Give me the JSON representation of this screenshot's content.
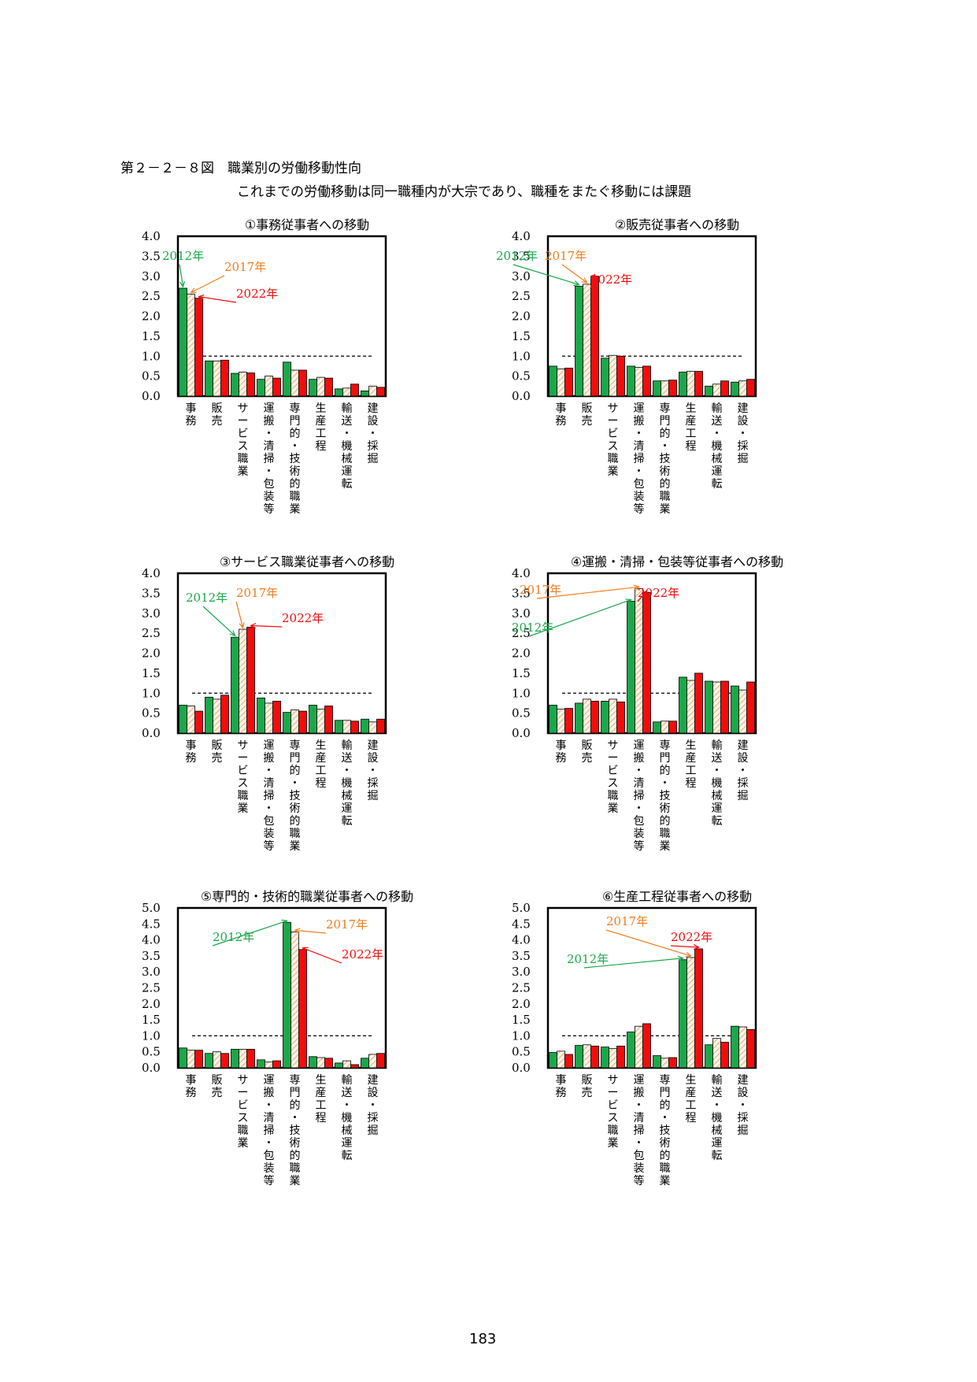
{
  "figure": {
    "title": "第２－２－８図　職業別の労働移動性向",
    "subtitle": "これまでの労働移動は同一職種内が大宗であり、職種をまたぐ移動には課題"
  },
  "page_number": "183",
  "colors": {
    "y2012": "#1aa84a",
    "y2017_stripe": "#f0a878",
    "y2017_bg": "#fff6ea",
    "y2022": "#f20c0c",
    "label_2012": "#1aa84a",
    "label_2017": "#f07d1e",
    "label_2022": "#f20c0c"
  },
  "chart_data": [
    {
      "type": "bar",
      "title": "①事務従事者への移動",
      "categories": [
        "事務",
        "販売",
        "サービス職業",
        "運搬・清掃・包装等",
        "専門的・技術的職業",
        "生産工程",
        "輸送・機械運転",
        "建設・採掘"
      ],
      "series": [
        {
          "name": "2012年",
          "values": [
            2.7,
            0.88,
            0.57,
            0.42,
            0.85,
            0.42,
            0.18,
            0.13
          ]
        },
        {
          "name": "2017年",
          "values": [
            2.55,
            0.88,
            0.6,
            0.5,
            0.65,
            0.47,
            0.2,
            0.25
          ]
        },
        {
          "name": "2022年",
          "values": [
            2.45,
            0.9,
            0.58,
            0.45,
            0.65,
            0.45,
            0.3,
            0.22
          ]
        }
      ],
      "ylim": [
        0,
        4
      ],
      "yticks": [
        "0.0",
        "0.5",
        "1.0",
        "1.5",
        "2.0",
        "2.5",
        "3.0",
        "3.5",
        "4.0"
      ],
      "reference_line": 1.0
    },
    {
      "type": "bar",
      "title": "②販売従事者への移動",
      "categories": [
        "事務",
        "販売",
        "サービス職業",
        "運搬・清掃・包装等",
        "専門的・技術的職業",
        "生産工程",
        "輸送・機械運転",
        "建設・採掘"
      ],
      "series": [
        {
          "name": "2012年",
          "values": [
            0.75,
            2.75,
            0.95,
            0.75,
            0.38,
            0.6,
            0.25,
            0.35
          ]
        },
        {
          "name": "2017年",
          "values": [
            0.68,
            2.8,
            1.02,
            0.72,
            0.38,
            0.62,
            0.3,
            0.38
          ]
        },
        {
          "name": "2022年",
          "values": [
            0.7,
            3.0,
            1.0,
            0.75,
            0.4,
            0.62,
            0.38,
            0.42
          ]
        }
      ],
      "ylim": [
        0,
        4
      ],
      "yticks": [
        "0.0",
        "0.5",
        "1.0",
        "1.5",
        "2.0",
        "2.5",
        "3.0",
        "3.5",
        "4.0"
      ],
      "reference_line": 1.0
    },
    {
      "type": "bar",
      "title": "③サービス職業従事者への移動",
      "categories": [
        "事務",
        "販売",
        "サービス職業",
        "運搬・清掃・包装等",
        "専門的・技術的職業",
        "生産工程",
        "輸送・機械運転",
        "建設・採掘"
      ],
      "series": [
        {
          "name": "2012年",
          "values": [
            0.7,
            0.9,
            2.4,
            0.88,
            0.52,
            0.7,
            0.32,
            0.35
          ]
        },
        {
          "name": "2017年",
          "values": [
            0.68,
            0.85,
            2.6,
            0.75,
            0.58,
            0.6,
            0.32,
            0.28
          ]
        },
        {
          "name": "2022年",
          "values": [
            0.55,
            0.95,
            2.65,
            0.8,
            0.55,
            0.68,
            0.3,
            0.35
          ]
        }
      ],
      "ylim": [
        0,
        4
      ],
      "yticks": [
        "0.0",
        "0.5",
        "1.0",
        "1.5",
        "2.0",
        "2.5",
        "3.0",
        "3.5",
        "4.0"
      ],
      "reference_line": 1.0
    },
    {
      "type": "bar",
      "title": "④運搬・清掃・包装等従事者への移動",
      "categories": [
        "事務",
        "販売",
        "サービス職業",
        "運搬・清掃・包装等",
        "専門的・技術的職業",
        "生産工程",
        "輸送・機械運転",
        "建設・採掘"
      ],
      "series": [
        {
          "name": "2012年",
          "values": [
            0.7,
            0.75,
            0.8,
            3.3,
            0.28,
            1.4,
            1.3,
            1.18
          ]
        },
        {
          "name": "2017年",
          "values": [
            0.6,
            0.85,
            0.85,
            3.62,
            0.3,
            1.32,
            1.28,
            1.08
          ]
        },
        {
          "name": "2022年",
          "values": [
            0.62,
            0.8,
            0.78,
            3.52,
            0.3,
            1.5,
            1.3,
            1.28
          ]
        }
      ],
      "ylim": [
        0,
        4
      ],
      "yticks": [
        "0.0",
        "0.5",
        "1.0",
        "1.5",
        "2.0",
        "2.5",
        "3.0",
        "3.5",
        "4.0"
      ],
      "reference_line": 1.0
    },
    {
      "type": "bar",
      "title": "⑤専門的・技術的職業従事者への移動",
      "categories": [
        "事務",
        "販売",
        "サービス職業",
        "運搬・清掃・包装等",
        "専門的・技術的職業",
        "生産工程",
        "輸送・機械運転",
        "建設・採掘"
      ],
      "series": [
        {
          "name": "2012年",
          "values": [
            0.62,
            0.45,
            0.58,
            0.25,
            4.55,
            0.35,
            0.15,
            0.3
          ]
        },
        {
          "name": "2017年",
          "values": [
            0.55,
            0.5,
            0.58,
            0.18,
            4.25,
            0.32,
            0.22,
            0.42
          ]
        },
        {
          "name": "2022年",
          "values": [
            0.55,
            0.45,
            0.58,
            0.22,
            3.7,
            0.3,
            0.1,
            0.45
          ]
        }
      ],
      "ylim": [
        0,
        5
      ],
      "yticks": [
        "0.0",
        "0.5",
        "1.0",
        "1.5",
        "2.0",
        "2.5",
        "3.0",
        "3.5",
        "4.0",
        "4.5",
        "5.0"
      ],
      "reference_line": 1.0
    },
    {
      "type": "bar",
      "title": "⑥生産工程従事者への移動",
      "categories": [
        "事務",
        "販売",
        "サービス職業",
        "運搬・清掃・包装等",
        "専門的・技術的職業",
        "生産工程",
        "輸送・機械運転",
        "建設・採掘"
      ],
      "series": [
        {
          "name": "2012年",
          "values": [
            0.48,
            0.7,
            0.65,
            1.12,
            0.38,
            3.38,
            0.72,
            1.3
          ]
        },
        {
          "name": "2017年",
          "values": [
            0.52,
            0.72,
            0.6,
            1.3,
            0.3,
            3.45,
            0.92,
            1.28
          ]
        },
        {
          "name": "2022年",
          "values": [
            0.42,
            0.68,
            0.68,
            1.38,
            0.32,
            3.72,
            0.8,
            1.2
          ]
        }
      ],
      "ylim": [
        0,
        5
      ],
      "yticks": [
        "0.0",
        "0.5",
        "1.0",
        "1.5",
        "2.0",
        "2.5",
        "3.0",
        "3.5",
        "4.0",
        "4.5",
        "5.0"
      ],
      "reference_line": 1.0
    }
  ]
}
